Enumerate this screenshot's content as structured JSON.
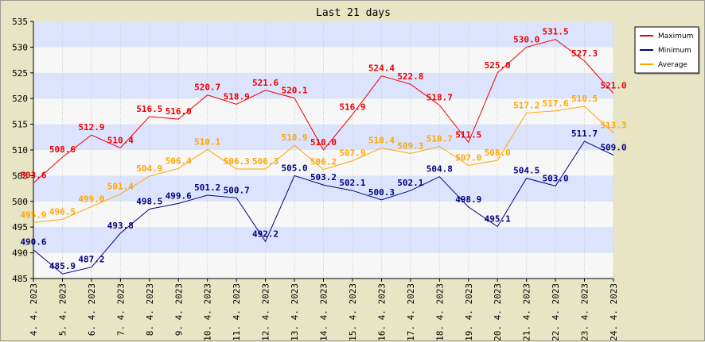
{
  "chart_data": {
    "type": "line",
    "title": "Last 21 days",
    "categories": [
      "4. 4. 2023",
      "5. 4. 2023",
      "6. 4. 2023",
      "7. 4. 2023",
      "8. 4. 2023",
      "9. 4. 2023",
      "10. 4. 2023",
      "11. 4. 2023",
      "12. 4. 2023",
      "13. 4. 2023",
      "14. 4. 2023",
      "15. 4. 2023",
      "16. 4. 2023",
      "17. 4. 2023",
      "18. 4. 2023",
      "19. 4. 2023",
      "20. 4. 2023",
      "21. 4. 2023",
      "22. 4. 2023",
      "23. 4. 2023",
      "24. 4. 2023"
    ],
    "ylim": [
      485,
      535
    ],
    "yticks": [
      485,
      490,
      495,
      500,
      505,
      510,
      515,
      520,
      525,
      530,
      535
    ],
    "grid": "alternating horizontal bands",
    "legend_position": "top-right",
    "series": [
      {
        "name": "Maximum",
        "color": "#ee0000",
        "values": [
          503.6,
          508.6,
          512.9,
          510.4,
          516.5,
          516.0,
          520.7,
          518.9,
          521.6,
          520.1,
          510.0,
          516.9,
          524.4,
          522.8,
          518.7,
          511.5,
          525.0,
          530.0,
          531.5,
          527.3,
          521.0
        ],
        "labels": [
          "503.6",
          "508.6",
          "512.9",
          "510.4",
          "516.5",
          "516.0",
          "520.7",
          "518.9",
          "521.6",
          "520.1",
          "510.0",
          "516.9",
          "524.4",
          "522.8",
          "518.7",
          "511.5",
          "525.0",
          "530.0",
          "531.5",
          "527.3",
          "521.0"
        ]
      },
      {
        "name": "Minimum",
        "color": "#000080",
        "values": [
          490.6,
          485.9,
          487.2,
          493.8,
          498.5,
          499.6,
          501.2,
          500.7,
          492.2,
          505.0,
          503.2,
          502.1,
          500.3,
          502.1,
          504.8,
          498.9,
          495.1,
          504.5,
          503.0,
          511.7,
          509.0
        ],
        "labels": [
          "490.6",
          "485.9",
          "487.2",
          "493.8",
          "498.5",
          "499.6",
          "501.2",
          "500.7",
          "492.2",
          "505.0",
          "503.2",
          "502.1",
          "500.3",
          "502.1",
          "504.8",
          "498.9",
          "495.1",
          "504.5",
          "503.0",
          "511.7",
          "509.0"
        ]
      },
      {
        "name": "Average",
        "color": "#ffa500",
        "values": [
          495.9,
          496.5,
          499.0,
          501.4,
          504.9,
          506.4,
          510.1,
          506.3,
          506.3,
          510.9,
          506.2,
          507.9,
          510.4,
          509.3,
          510.7,
          507.0,
          508.0,
          517.2,
          517.6,
          518.5,
          513.3
        ],
        "labels": [
          "495.9",
          "496.5",
          "499.0",
          "501.4",
          "504.9",
          "506.4",
          "510.1",
          "506.3",
          "506.3",
          "510.9",
          "506.2",
          "507.9",
          "510.4",
          "509.3",
          "510.7",
          "507.0",
          "508.0",
          "517.2",
          "517.6",
          "518.5",
          "513.3"
        ]
      }
    ]
  }
}
